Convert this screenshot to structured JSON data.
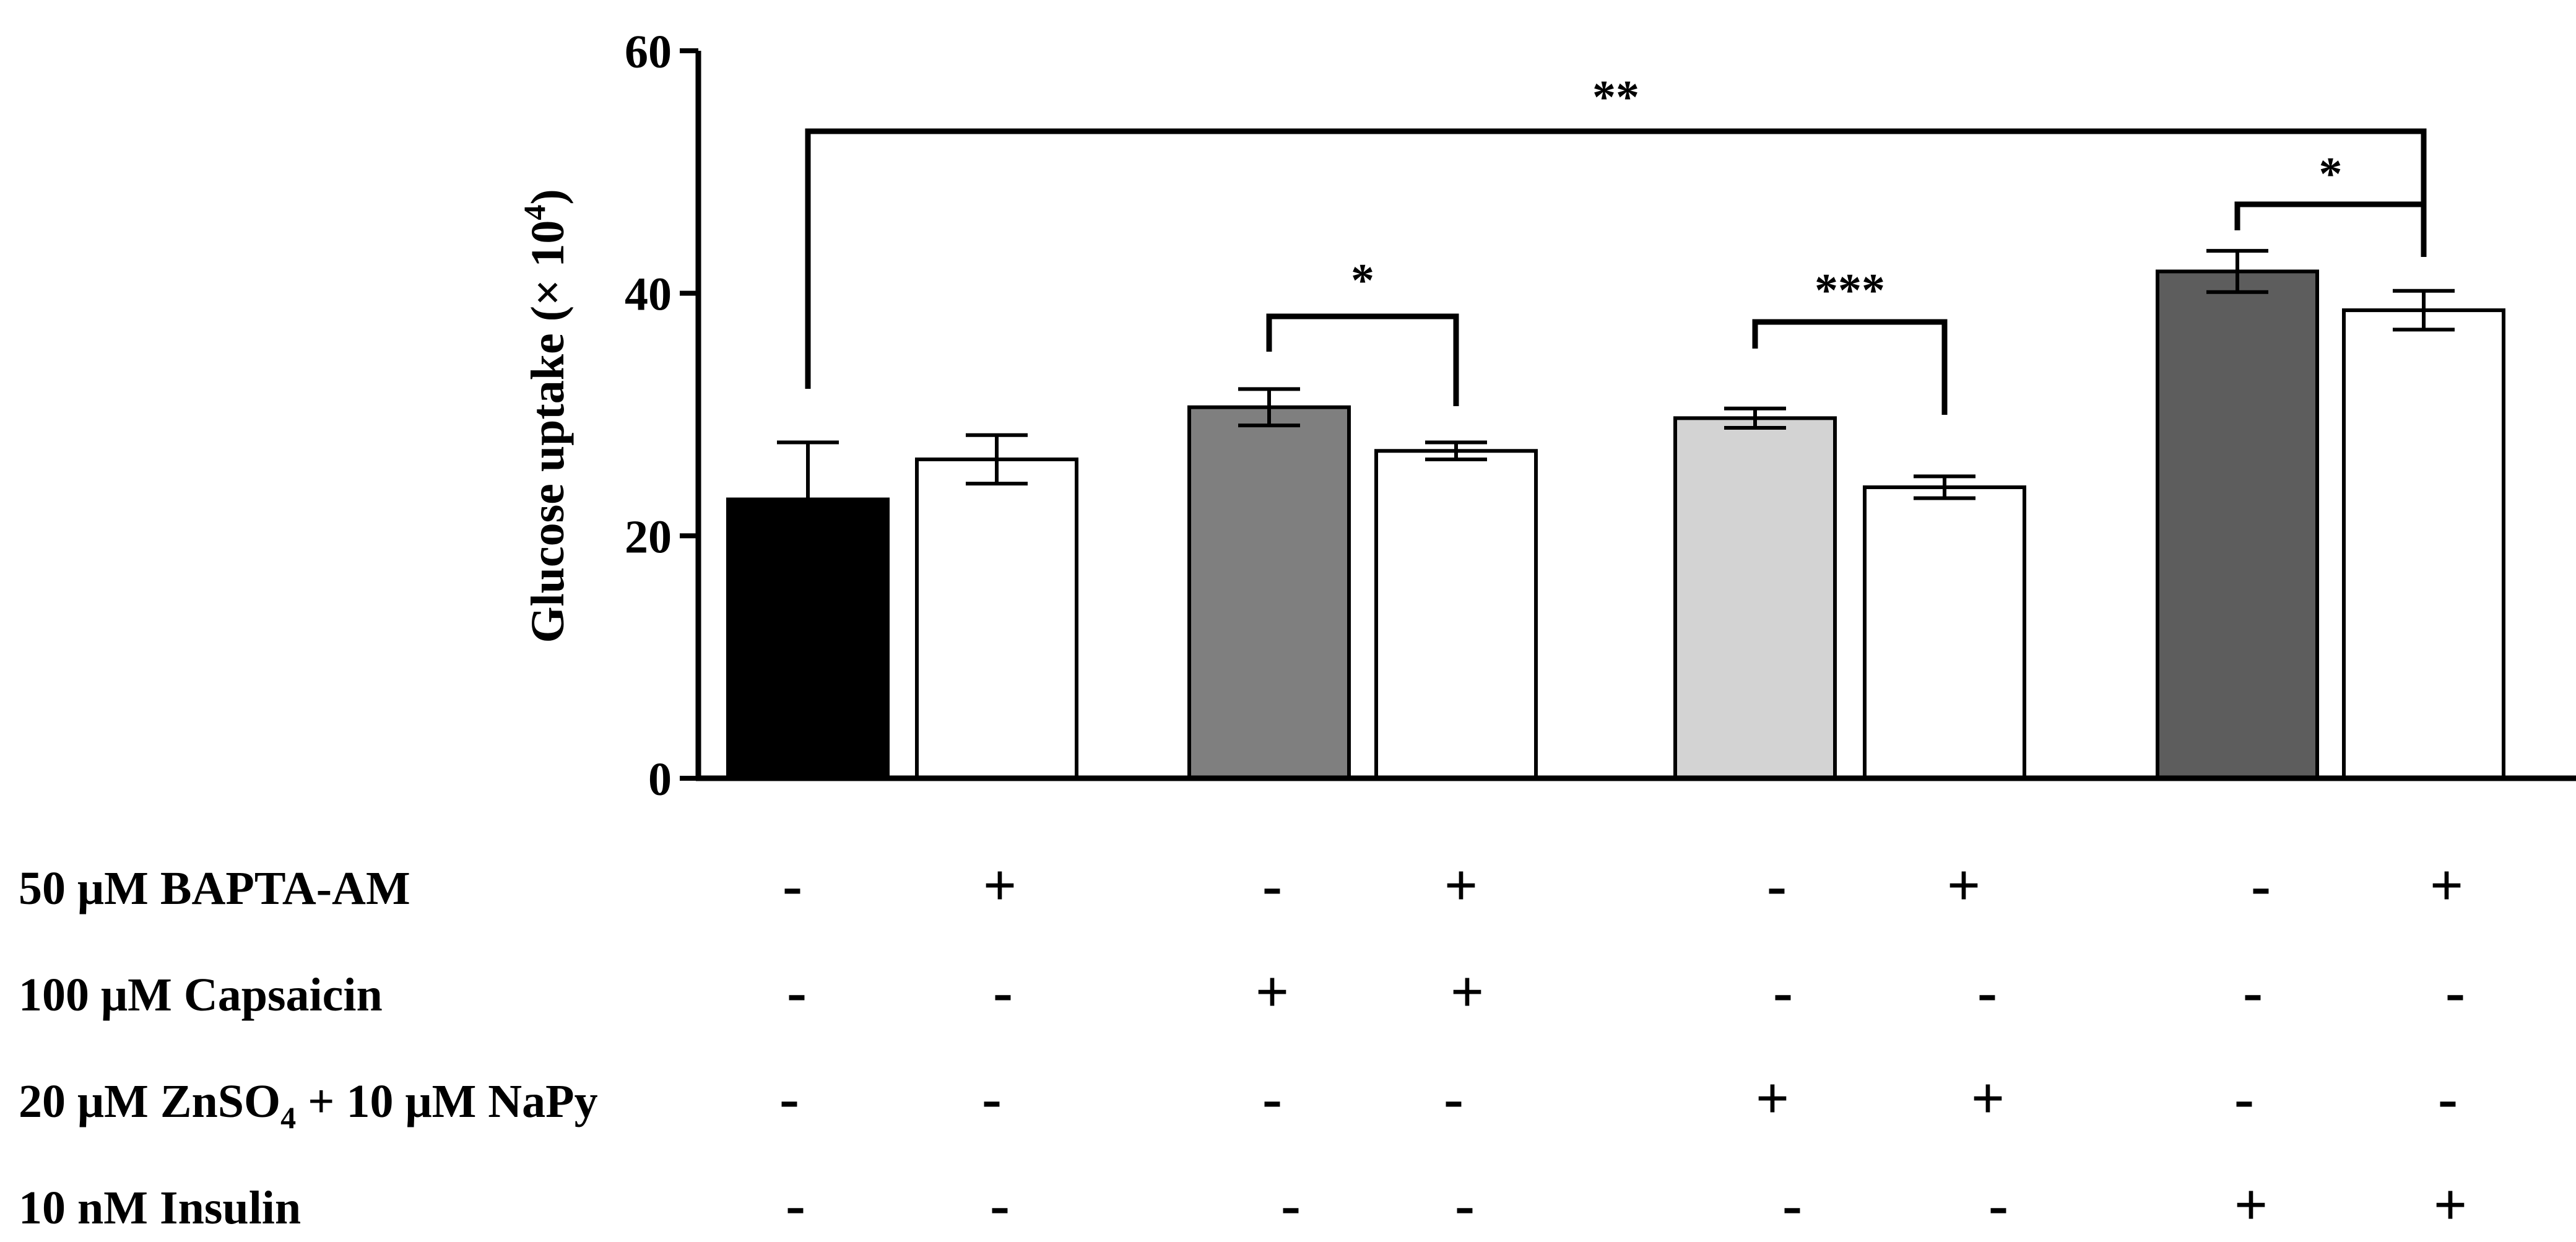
{
  "chart_data": {
    "type": "bar",
    "title": "",
    "ylabel": "Glucose uptake (× 10",
    "ylabel_exponent": "4",
    "ylabel_close": ")",
    "ylim": [
      0,
      60
    ],
    "yticks": [
      0,
      20,
      40,
      60
    ],
    "ytick_labels": [
      "0",
      "20",
      "40",
      "60"
    ],
    "grid": false,
    "legend": "none",
    "colors": {
      "black": "#000000",
      "gray": "#7f7f7f",
      "light_gray": "#d3d3d3",
      "dark_gray": "#5d5d5d",
      "white": "#ffffff"
    },
    "bars": [
      {
        "value": 23.0,
        "error": 4.7,
        "fill": "#000000"
      },
      {
        "value": 26.3,
        "error": 2.0,
        "fill": "#ffffff"
      },
      {
        "value": 30.6,
        "error": 1.5,
        "fill": "#7f7f7f"
      },
      {
        "value": 27.0,
        "error": 0.7,
        "fill": "#ffffff"
      },
      {
        "value": 29.7,
        "error": 0.8,
        "fill": "#d3d3d3"
      },
      {
        "value": 24.0,
        "error": 0.9,
        "fill": "#ffffff"
      },
      {
        "value": 41.8,
        "error": 1.7,
        "fill": "#5d5d5d"
      },
      {
        "value": 38.6,
        "error": 1.6,
        "fill": "#ffffff"
      }
    ],
    "treatments": [
      {
        "label": "50 μM BAPTA-AM",
        "signs": [
          "-",
          "+",
          "-",
          "+",
          "-",
          "+",
          "-",
          "+"
        ]
      },
      {
        "label": "100 μM Capsaicin",
        "signs": [
          "-",
          "-",
          "+",
          "+",
          "-",
          "-",
          "-",
          "-"
        ]
      },
      {
        "label_parts": [
          "20 μM ZnSO",
          "4",
          " + 10 μM NaPy"
        ],
        "signs": [
          "-",
          "-",
          "-",
          "-",
          "+",
          "+",
          "-",
          "-"
        ]
      },
      {
        "label": "10 nM Insulin",
        "signs": [
          "-",
          "-",
          "-",
          "-",
          "-",
          "-",
          "+",
          "+"
        ]
      }
    ],
    "significance": [
      {
        "from": 0,
        "to": 7,
        "label": "**"
      },
      {
        "from": 2,
        "to": 3,
        "label": "*"
      },
      {
        "from": 4,
        "to": 5,
        "label": "***"
      },
      {
        "from": 6,
        "to": 7,
        "label": "*"
      }
    ]
  }
}
